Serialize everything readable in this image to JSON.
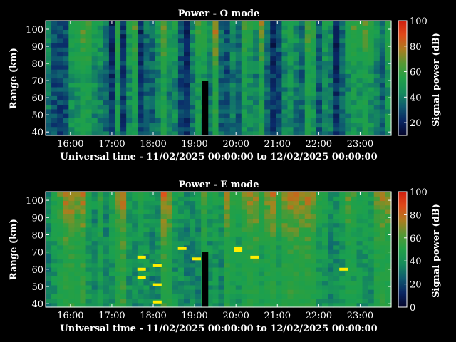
{
  "colors": {
    "background": "#000000",
    "foreground": "#ffffff",
    "colormap_stops": [
      "#05052a",
      "#0a2a6a",
      "#106a70",
      "#1aa050",
      "#2aa040",
      "#9a8a20",
      "#e0501a",
      "#d02010",
      "#ffee00"
    ]
  },
  "chart_data": [
    {
      "type": "heatmap",
      "title": "Power - O mode",
      "xlabel": "Universal time - 11/02/2025 00:00:00 to 12/02/2025 00:00:00",
      "ylabel": "Range (km)",
      "xlim_hours": [
        15.4,
        23.75
      ],
      "ylim": [
        38,
        105
      ],
      "x_ticks": [
        "16:00",
        "17:00",
        "18:00",
        "19:00",
        "20:00",
        "21:00",
        "22:00",
        "23:00"
      ],
      "x_tick_hours": [
        16,
        17,
        18,
        19,
        20,
        21,
        22,
        23
      ],
      "y_ticks": [
        "40",
        "50",
        "60",
        "70",
        "80",
        "90",
        "100"
      ],
      "y_tick_values": [
        40,
        50,
        60,
        70,
        80,
        90,
        100
      ],
      "colorbar": {
        "label": "Signal power (dB)",
        "min": 10,
        "max": 100,
        "ticks": [
          "20",
          "40",
          "60",
          "80",
          "100"
        ],
        "tick_values": [
          20,
          40,
          60,
          80,
          100
        ]
      },
      "mean_power_db": [
        44,
        36,
        34,
        36,
        50,
        52,
        56,
        57,
        48,
        46,
        42,
        30,
        54,
        32,
        48,
        55,
        32,
        40,
        40,
        46,
        58,
        46,
        48,
        36,
        30,
        44,
        54,
        52,
        44,
        62,
        40,
        36,
        44,
        40,
        54,
        50,
        46,
        58,
        40,
        30,
        36,
        46,
        50,
        44,
        40,
        56,
        52,
        38,
        48,
        44,
        30,
        40,
        48,
        54,
        52,
        56,
        52,
        46,
        40,
        52
      ],
      "gaps": [
        {
          "start_hour": 19.18,
          "end_hour": 19.33,
          "top_km": 70
        }
      ]
    },
    {
      "type": "heatmap",
      "title": "Power - E mode",
      "xlabel": "Universal time - 11/02/2025 00:00:00 to 12/02/2025 00:00:00",
      "ylabel": "Range (km)",
      "xlim_hours": [
        15.4,
        23.75
      ],
      "ylim": [
        38,
        105
      ],
      "x_ticks": [
        "16:00",
        "17:00",
        "18:00",
        "19:00",
        "20:00",
        "21:00",
        "22:00",
        "23:00"
      ],
      "x_tick_hours": [
        16,
        17,
        18,
        19,
        20,
        21,
        22,
        23
      ],
      "y_ticks": [
        "40",
        "50",
        "60",
        "70",
        "80",
        "90",
        "100"
      ],
      "y_tick_values": [
        40,
        50,
        60,
        70,
        80,
        90,
        100
      ],
      "colorbar": {
        "label": "Signal power (dB)",
        "min": 0,
        "max": 100,
        "ticks": [
          "0",
          "20",
          "40",
          "60",
          "80",
          "100"
        ],
        "tick_values": [
          0,
          20,
          40,
          60,
          80,
          100
        ]
      },
      "mean_power_db": [
        40,
        46,
        52,
        60,
        60,
        58,
        60,
        46,
        40,
        50,
        40,
        46,
        56,
        62,
        44,
        42,
        46,
        44,
        40,
        42,
        62,
        58,
        44,
        44,
        40,
        40,
        40,
        52,
        44,
        46,
        42,
        58,
        50,
        48,
        54,
        58,
        58,
        50,
        56,
        60,
        50,
        58,
        60,
        60,
        58,
        60,
        56,
        48,
        46,
        40,
        42,
        46,
        54,
        50,
        46,
        46,
        44,
        56,
        58,
        56
      ],
      "gaps": [
        {
          "start_hour": 19.18,
          "end_hour": 19.33,
          "top_km": 70
        }
      ],
      "spikes": [
        {
          "hour": 17.72,
          "km": 67
        },
        {
          "hour": 17.72,
          "km": 60
        },
        {
          "hour": 17.72,
          "km": 55
        },
        {
          "hour": 18.1,
          "km": 62
        },
        {
          "hour": 18.1,
          "km": 51
        },
        {
          "hour": 18.1,
          "km": 41
        },
        {
          "hour": 18.7,
          "km": 72
        },
        {
          "hour": 19.05,
          "km": 66
        },
        {
          "hour": 20.05,
          "km": 72
        },
        {
          "hour": 20.05,
          "km": 71
        },
        {
          "hour": 20.45,
          "km": 67
        },
        {
          "hour": 22.6,
          "km": 60
        }
      ]
    }
  ]
}
